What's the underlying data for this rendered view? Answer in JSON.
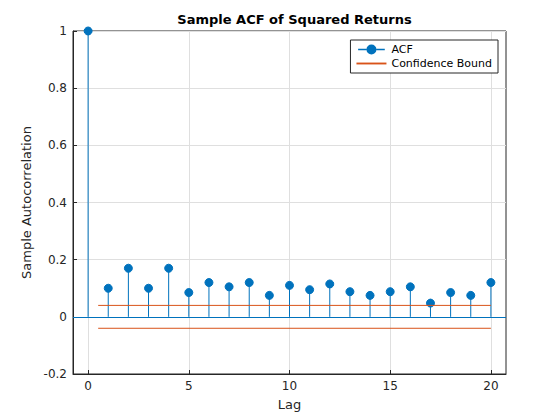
{
  "chart_data": {
    "type": "stem",
    "title": "Sample ACF of Squared Returns",
    "x_label": "Lag",
    "y_label": "Sample Autocorrelation",
    "xlim": [
      -0.75,
      20.75
    ],
    "xticks": [
      0,
      5,
      10,
      15,
      20
    ],
    "ylim": [
      -0.2,
      1
    ],
    "yticks": [
      -0.2,
      0,
      0.2,
      0.4,
      0.6,
      0.8,
      1
    ],
    "grid": true,
    "legend": "northeast",
    "series": [
      {
        "name": "ACF",
        "type": "stem",
        "color": "#0072bd",
        "marker": "circle",
        "x": [
          0,
          1,
          2,
          3,
          4,
          5,
          6,
          7,
          8,
          9,
          10,
          11,
          12,
          13,
          14,
          15,
          16,
          17,
          18,
          19,
          20
        ],
        "values": [
          1.0,
          0.1,
          0.17,
          0.1,
          0.17,
          0.085,
          0.12,
          0.105,
          0.12,
          0.075,
          0.11,
          0.095,
          0.115,
          0.088,
          0.075,
          0.088,
          0.105,
          0.048,
          0.085,
          0.075,
          0.12
        ]
      },
      {
        "name": "Confidence Bound",
        "type": "line",
        "color": "#d95319",
        "line_style": "solid",
        "x": [
          0.5,
          20
        ],
        "values": [
          0.04,
          0.04
        ],
        "lower": [
          -0.04,
          -0.04
        ]
      }
    ]
  }
}
